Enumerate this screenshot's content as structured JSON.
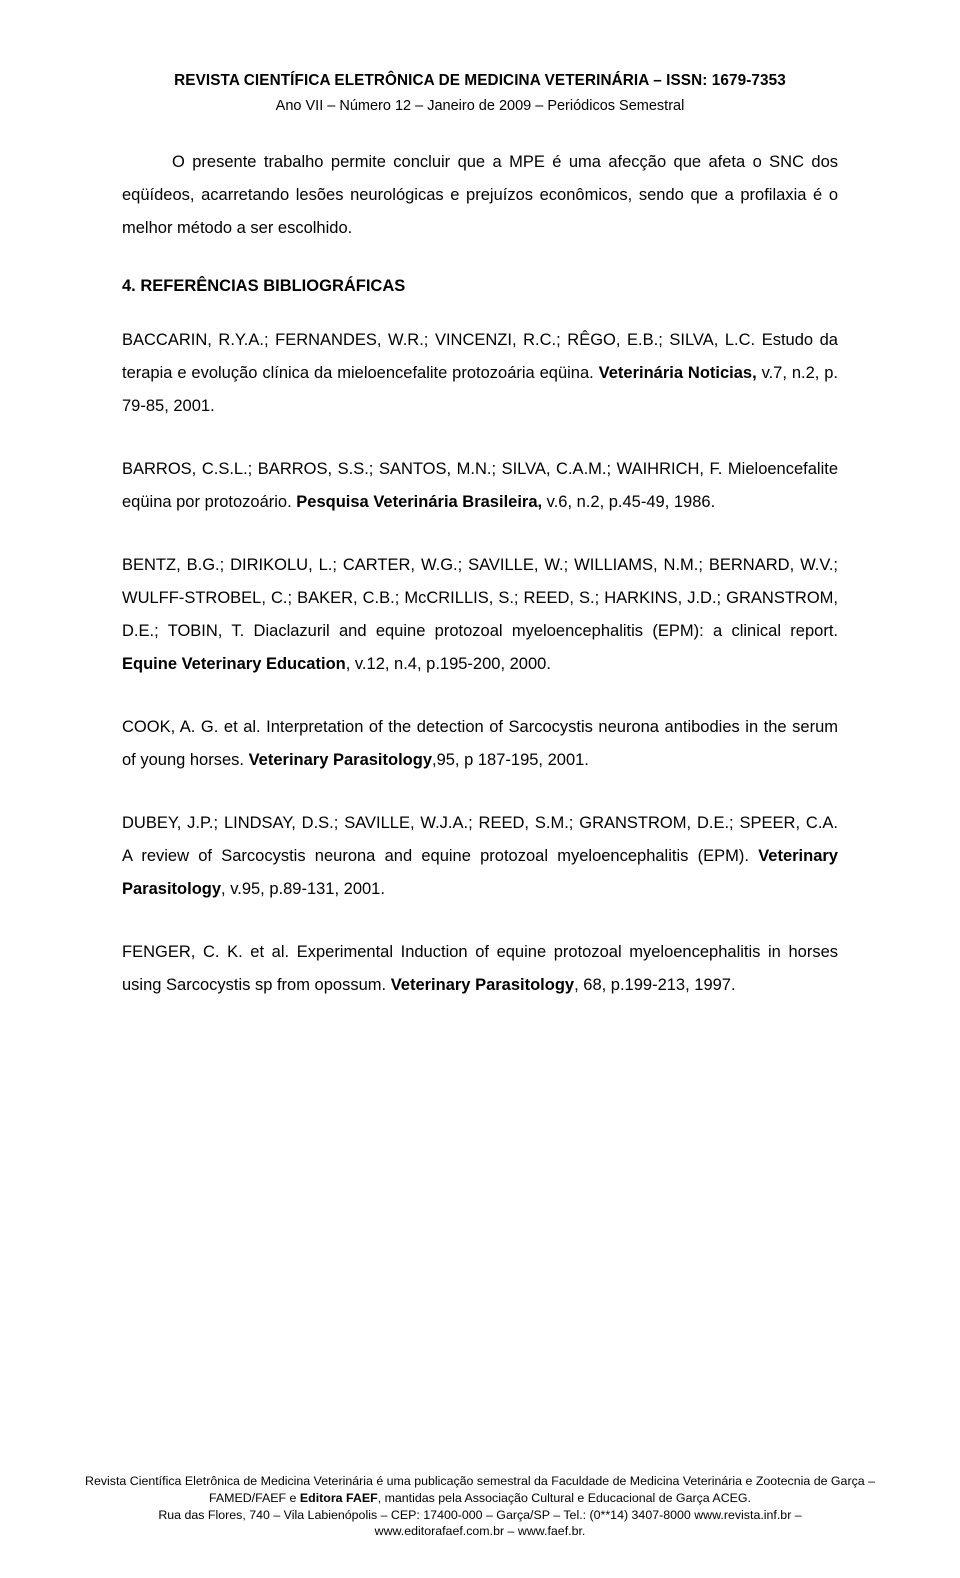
{
  "header": {
    "title": "REVISTA CIENTÍFICA ELETRÔNICA DE MEDICINA VETERINÁRIA – ISSN: 1679-7353",
    "sub": "Ano VII – Número 12 – Janeiro de 2009 – Periódicos Semestral"
  },
  "intro": "O presente trabalho permite concluir que a MPE é uma afecção que afeta o SNC dos eqüídeos, acarretando lesões neurológicas e prejuízos econômicos, sendo que a profilaxia é o melhor método a ser escolhido.",
  "sectionTitle": "4. REFERÊNCIAS BIBLIOGRÁFICAS",
  "refs": {
    "r1a": "BACCARIN, R.Y.A.; FERNANDES, W.R.; VINCENZI, R.C.; RÊGO, E.B.; SILVA, L.C. Estudo da terapia e evolução clínica da mieloencefalite protozoária eqüina. ",
    "r1b": "Veterinária Noticias,",
    "r1c": " v.7, n.2, p. 79-85, 2001.",
    "r2a": "BARROS, C.S.L.; BARROS, S.S.; SANTOS, M.N.; SILVA, C.A.M.; WAIHRICH, F. Mieloencefalite eqüina por protozoário. ",
    "r2b": "Pesquisa Veterinária Brasileira,",
    "r2c": " v.6, n.2, p.45-49, 1986.",
    "r3a": "BENTZ, B.G.; DIRIKOLU, L.; CARTER, W.G.; SAVILLE, W.; WILLIAMS, N.M.; BERNARD, W.V.; WULFF-STROBEL, C.; BAKER, C.B.; McCRILLIS, S.; REED, S.; HARKINS, J.D.; GRANSTROM, D.E.; TOBIN, T. Diaclazuril and equine protozoal myeloencephalitis (EPM): a clinical report. ",
    "r3b": "Equine Veterinary Education",
    "r3c": ", v.12, n.4, p.195-200, 2000.",
    "r4a": "COOK, A. G. et al. Interpretation of the detection of Sarcocystis neurona antibodies in the serum of young horses. ",
    "r4b": "Veterinary Parasitology",
    "r4c": ",95, p 187-195, 2001.",
    "r5a": "DUBEY, J.P.; LINDSAY, D.S.; SAVILLE, W.J.A.; REED, S.M.; GRANSTROM, D.E.; SPEER, C.A. A review of Sarcocystis neurona and equine protozoal myeloencephalitis (EPM). ",
    "r5b": "Veterinary Parasitology",
    "r5c": ", v.95, p.89-131, 2001.",
    "r6a": "FENGER, C. K. et al. Experimental Induction of equine protozoal myeloencephalitis in horses using Sarcocystis sp from opossum. ",
    "r6b": "Veterinary Parasitology",
    "r6c": ", 68, p.199-213, 1997."
  },
  "footer": {
    "l1a": "Revista Científica Eletrônica de Medicina Veterinária é uma publicação semestral da Faculdade de Medicina Veterinária e Zootecnia de Garça – FAMED/FAEF e ",
    "l1b": "Editora FAEF",
    "l1c": ", mantidas pela Associação Cultural e Educacional de Garça ACEG.",
    "l2a": "Rua das Flores, 740 – Vila Labienópolis – CEP: 17400-000 – Garça/SP – Tel.: (0**14) 3407-8000 ",
    "l2b": "www.revista.inf.br",
    "l2c": " – ",
    "l3a": "www.editorafaef.com.br",
    "l3b": " – ",
    "l3c": "www.faef.br",
    "l3d": "."
  },
  "style": {
    "bodyFontSize": 16.5,
    "lineHeight": 2.0,
    "headerFontSize": 15.3,
    "footerFontSize": 12.4,
    "textColor": "#000000",
    "background": "#ffffff"
  }
}
